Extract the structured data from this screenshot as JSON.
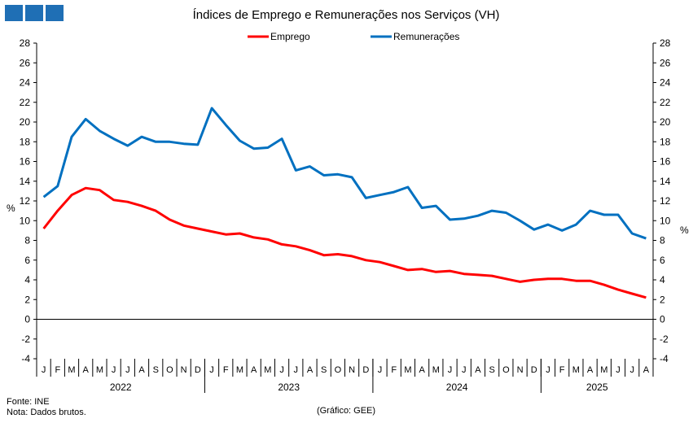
{
  "chart_data": {
    "type": "line",
    "title": "Índices de Emprego e Remunerações nos Serviços (VH)",
    "ylabel_left": "%",
    "ylabel_right": "%",
    "ylim": [
      -4,
      28
    ],
    "yticks": [
      -4,
      -2,
      0,
      2,
      4,
      6,
      8,
      10,
      12,
      14,
      16,
      18,
      20,
      22,
      24,
      26,
      28
    ],
    "month_labels": [
      "J",
      "F",
      "M",
      "A",
      "M",
      "J",
      "J",
      "A",
      "S",
      "O",
      "N",
      "D",
      "J",
      "F",
      "M",
      "A",
      "M",
      "J",
      "J",
      "A",
      "S",
      "O",
      "N",
      "D",
      "J",
      "F",
      "M",
      "A",
      "M",
      "J",
      "J",
      "A",
      "S",
      "O",
      "N",
      "D",
      "J",
      "F",
      "M",
      "A",
      "M",
      "J",
      "J",
      "A"
    ],
    "years": [
      {
        "label": "2022",
        "months": 12
      },
      {
        "label": "2023",
        "months": 12
      },
      {
        "label": "2024",
        "months": 12
      },
      {
        "label": "2025",
        "months": 8
      }
    ],
    "legend_position": "top-center",
    "series": [
      {
        "name": "Emprego",
        "color": "#ff0000",
        "values": [
          9.2,
          11.0,
          12.6,
          13.3,
          13.1,
          12.1,
          11.9,
          11.5,
          11.0,
          10.1,
          9.5,
          9.2,
          8.9,
          8.6,
          8.7,
          8.3,
          8.1,
          7.6,
          7.4,
          7.0,
          6.5,
          6.6,
          6.4,
          6.0,
          5.8,
          5.4,
          5.0,
          5.1,
          4.8,
          4.9,
          4.6,
          4.5,
          4.4,
          4.1,
          3.8,
          4.0,
          4.1,
          4.1,
          3.9,
          3.9,
          3.5,
          3.0,
          2.6,
          2.2
        ]
      },
      {
        "name": "Remunerações",
        "color": "#0070c0",
        "values": [
          12.4,
          13.5,
          18.5,
          20.3,
          19.1,
          18.3,
          17.6,
          18.5,
          18.0,
          18.0,
          17.8,
          17.7,
          21.4,
          19.7,
          18.1,
          17.3,
          17.4,
          18.3,
          15.1,
          15.5,
          14.6,
          14.7,
          14.4,
          12.3,
          12.6,
          12.9,
          13.4,
          11.3,
          11.5,
          10.1,
          10.2,
          10.5,
          11.0,
          10.8,
          10.0,
          9.1,
          9.6,
          9.0,
          9.6,
          11.0,
          10.6,
          10.6,
          8.7,
          8.2
        ]
      }
    ]
  },
  "footer": {
    "source": "Fonte: INE",
    "note": "Nota: Dados brutos.",
    "credit": "(Gráfico: GEE)"
  }
}
